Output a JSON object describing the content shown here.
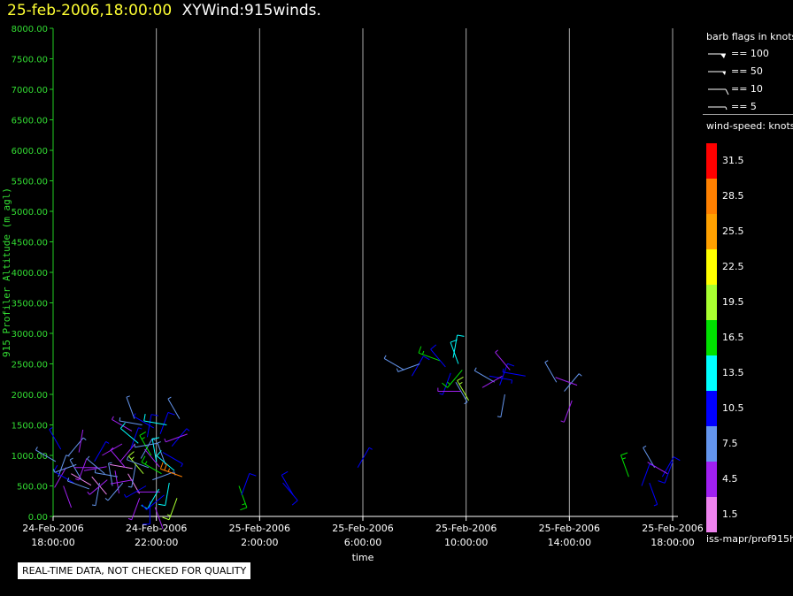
{
  "header": {
    "timestamp": "25-feb-2006,18:00:00",
    "name": "XYWind:915winds."
  },
  "chart_data": {
    "type": "scatter",
    "title": "25-feb-2006,18:00:00  XYWind:915winds.",
    "xlabel": "time",
    "ylabel": "915 Profiler Altitude (m agl)",
    "ylim": [
      0,
      8000
    ],
    "yticks": [
      "0.00",
      "500.00",
      "1000.00",
      "1500.00",
      "2000.00",
      "2500.00",
      "3000.00",
      "3500.00",
      "4000.00",
      "4500.00",
      "5000.00",
      "5500.00",
      "6000.00",
      "6500.00",
      "7000.00",
      "7500.00",
      "8000.00"
    ],
    "xlim_hours": [
      0,
      24
    ],
    "xticks": [
      {
        "hour": 0,
        "date": "24-Feb-2006",
        "time": "18:00:00"
      },
      {
        "hour": 4,
        "date": "24-Feb-2006",
        "time": "22:00:00"
      },
      {
        "hour": 8,
        "date": "25-Feb-2006",
        "time": "2:00:00"
      },
      {
        "hour": 12,
        "date": "25-Feb-2006",
        "time": "6:00:00"
      },
      {
        "hour": 16,
        "date": "25-Feb-2006",
        "time": "10:00:00"
      },
      {
        "hour": 20,
        "date": "25-Feb-2006",
        "time": "14:00:00"
      },
      {
        "hour": 24,
        "date": "25-Feb-2006",
        "time": "18:00:00"
      }
    ],
    "grid": "vertical",
    "wind_barbs": [
      {
        "t": 0.1,
        "alt": 900,
        "spd": 7.5,
        "dir": 300
      },
      {
        "t": 0.2,
        "alt": 650,
        "spd": 6,
        "dir": 20
      },
      {
        "t": 0.3,
        "alt": 1100,
        "spd": 9,
        "dir": 330
      },
      {
        "t": 0.4,
        "alt": 500,
        "spd": 4,
        "dir": 160
      },
      {
        "t": 0.5,
        "alt": 800,
        "spd": 3,
        "dir": 210
      },
      {
        "t": 0.6,
        "alt": 1000,
        "spd": 8,
        "dir": 40
      },
      {
        "t": 0.7,
        "alt": 700,
        "spd": 2,
        "dir": 120
      },
      {
        "t": 0.8,
        "alt": 550,
        "spd": 11,
        "dir": 300
      },
      {
        "t": 0.9,
        "alt": 850,
        "spd": 6,
        "dir": 250
      },
      {
        "t": 1.0,
        "alt": 1050,
        "spd": 4,
        "dir": 10
      },
      {
        "t": 1.1,
        "alt": 600,
        "spd": 8,
        "dir": 330
      },
      {
        "t": 1.2,
        "alt": 750,
        "spd": 3,
        "dir": 80
      },
      {
        "t": 1.3,
        "alt": 950,
        "spd": 5,
        "dir": 200
      },
      {
        "t": 1.4,
        "alt": 450,
        "spd": 7,
        "dir": 290
      },
      {
        "t": 1.5,
        "alt": 650,
        "spd": 2,
        "dir": 140
      },
      {
        "t": 1.6,
        "alt": 900,
        "spd": 9,
        "dir": 30
      },
      {
        "t": 1.7,
        "alt": 800,
        "spd": 4,
        "dir": 270
      },
      {
        "t": 1.8,
        "alt": 550,
        "spd": 6,
        "dir": 190
      },
      {
        "t": 1.9,
        "alt": 1000,
        "spd": 3,
        "dir": 60
      },
      {
        "t": 2.0,
        "alt": 700,
        "spd": 8,
        "dir": 310
      },
      {
        "t": 2.1,
        "alt": 600,
        "spd": 5,
        "dir": 230
      },
      {
        "t": 2.2,
        "alt": 850,
        "spd": 2,
        "dir": 100
      },
      {
        "t": 2.3,
        "alt": 500,
        "spd": 7,
        "dir": 350
      },
      {
        "t": 2.4,
        "alt": 750,
        "spd": 4,
        "dir": 170
      },
      {
        "t": 2.5,
        "alt": 650,
        "spd": 6,
        "dir": 280
      },
      {
        "t": 2.6,
        "alt": 900,
        "spd": 3,
        "dir": 40
      },
      {
        "t": 2.7,
        "alt": 550,
        "spd": 8,
        "dir": 220
      },
      {
        "t": 2.8,
        "alt": 800,
        "spd": 5,
        "dir": 320
      },
      {
        "t": 2.9,
        "alt": 700,
        "spd": 2,
        "dir": 150
      },
      {
        "t": 3.0,
        "alt": 1100,
        "spd": 9,
        "dir": 20
      },
      {
        "t": 3.05,
        "alt": 1400,
        "spd": 5,
        "dir": 300
      },
      {
        "t": 3.1,
        "alt": 600,
        "spd": 4,
        "dir": 260
      },
      {
        "t": 3.15,
        "alt": 1600,
        "spd": 6,
        "dir": 340
      },
      {
        "t": 3.2,
        "alt": 850,
        "spd": 7,
        "dir": 190
      },
      {
        "t": 3.25,
        "alt": 400,
        "spd": 3,
        "dir": 90
      },
      {
        "t": 3.3,
        "alt": 1200,
        "spd": 12,
        "dir": 310
      },
      {
        "t": 3.35,
        "alt": 300,
        "spd": 5,
        "dir": 200
      },
      {
        "t": 3.4,
        "alt": 950,
        "spd": 6,
        "dir": 30
      },
      {
        "t": 3.45,
        "alt": 1500,
        "spd": 8,
        "dir": 280
      },
      {
        "t": 3.5,
        "alt": 700,
        "spd": 18,
        "dir": 320
      },
      {
        "t": 3.55,
        "alt": 1100,
        "spd": 4,
        "dir": 140
      },
      {
        "t": 3.6,
        "alt": 500,
        "spd": 9,
        "dir": 240
      },
      {
        "t": 3.65,
        "alt": 1300,
        "spd": 11,
        "dir": 10
      },
      {
        "t": 3.7,
        "alt": 800,
        "spd": 6,
        "dir": 290
      },
      {
        "t": 3.75,
        "alt": 250,
        "spd": 10,
        "dir": 180
      },
      {
        "t": 3.8,
        "alt": 1000,
        "spd": 15,
        "dir": 330
      },
      {
        "t": 3.85,
        "alt": 600,
        "spd": 7,
        "dir": 70
      },
      {
        "t": 3.9,
        "alt": 1450,
        "spd": 9,
        "dir": 300
      },
      {
        "t": 3.95,
        "alt": 150,
        "spd": 4,
        "dir": 160
      },
      {
        "t": 4.0,
        "alt": 900,
        "spd": 12,
        "dir": 350
      },
      {
        "t": 4.05,
        "alt": 1200,
        "spd": 8,
        "dir": 260
      },
      {
        "t": 4.1,
        "alt": 450,
        "spd": 14,
        "dir": 210
      },
      {
        "t": 4.15,
        "alt": 1350,
        "spd": 10,
        "dir": 20
      },
      {
        "t": 4.2,
        "alt": 700,
        "spd": 16,
        "dir": 300
      },
      {
        "t": 4.25,
        "alt": 1050,
        "spd": 9,
        "dir": 120
      },
      {
        "t": 4.3,
        "alt": 350,
        "spd": 11,
        "dir": 230
      },
      {
        "t": 4.35,
        "alt": 850,
        "spd": 7,
        "dir": 340
      },
      {
        "t": 4.4,
        "alt": 1500,
        "spd": 12,
        "dir": 280
      },
      {
        "t": 4.5,
        "alt": 550,
        "spd": 14,
        "dir": 190
      },
      {
        "t": 4.6,
        "alt": 1150,
        "spd": 9,
        "dir": 40
      },
      {
        "t": 4.7,
        "alt": 750,
        "spd": 13,
        "dir": 310
      },
      {
        "t": 4.8,
        "alt": 300,
        "spd": 18,
        "dir": 200
      },
      {
        "t": 4.9,
        "alt": 1600,
        "spd": 8,
        "dir": 330
      },
      {
        "t": 5.0,
        "alt": 650,
        "spd": 27,
        "dir": 290
      },
      {
        "t": 5.2,
        "alt": 1350,
        "spd": 5,
        "dir": 250
      },
      {
        "t": 7.2,
        "alt": 500,
        "spd": 15,
        "dir": 160
      },
      {
        "t": 7.3,
        "alt": 350,
        "spd": 11,
        "dir": 20
      },
      {
        "t": 8.9,
        "alt": 550,
        "spd": 10,
        "dir": 140
      },
      {
        "t": 9.3,
        "alt": 350,
        "spd": 10,
        "dir": 330
      },
      {
        "t": 11.8,
        "alt": 800,
        "spd": 9,
        "dir": 30
      },
      {
        "t": 13.6,
        "alt": 2400,
        "spd": 8,
        "dir": 300
      },
      {
        "t": 13.9,
        "alt": 2300,
        "spd": 10,
        "dir": 30
      },
      {
        "t": 14.2,
        "alt": 2500,
        "spd": 6,
        "dir": 250
      },
      {
        "t": 15.0,
        "alt": 2550,
        "spd": 17,
        "dir": 290
      },
      {
        "t": 15.2,
        "alt": 2450,
        "spd": 11,
        "dir": 320
      },
      {
        "t": 15.4,
        "alt": 2350,
        "spd": 9,
        "dir": 200
      },
      {
        "t": 15.5,
        "alt": 2600,
        "spd": 12,
        "dir": 10
      },
      {
        "t": 15.6,
        "alt": 2200,
        "spd": 7,
        "dir": 150
      },
      {
        "t": 15.7,
        "alt": 2500,
        "spd": 14,
        "dir": 340
      },
      {
        "t": 15.8,
        "alt": 2050,
        "spd": 5,
        "dir": 270
      },
      {
        "t": 15.85,
        "alt": 2400,
        "spd": 15,
        "dir": 220
      },
      {
        "t": 16.1,
        "alt": 1900,
        "spd": 18,
        "dir": 330
      },
      {
        "t": 16.9,
        "alt": 2300,
        "spd": 9,
        "dir": 100
      },
      {
        "t": 17.1,
        "alt": 2200,
        "spd": 6,
        "dir": 300
      },
      {
        "t": 17.3,
        "alt": 2150,
        "spd": 11,
        "dir": 20
      },
      {
        "t": 17.4,
        "alt": 2300,
        "spd": 4,
        "dir": 240
      },
      {
        "t": 17.5,
        "alt": 2000,
        "spd": 8,
        "dir": 190
      },
      {
        "t": 17.7,
        "alt": 2400,
        "spd": 5,
        "dir": 320
      },
      {
        "t": 18.3,
        "alt": 2300,
        "spd": 9,
        "dir": 280
      },
      {
        "t": 19.5,
        "alt": 2200,
        "spd": 6,
        "dir": 330
      },
      {
        "t": 19.8,
        "alt": 2050,
        "spd": 7,
        "dir": 40
      },
      {
        "t": 20.1,
        "alt": 1900,
        "spd": 5,
        "dir": 200
      },
      {
        "t": 20.3,
        "alt": 2150,
        "spd": 4,
        "dir": 290
      },
      {
        "t": 22.3,
        "alt": 650,
        "spd": 17,
        "dir": 340
      },
      {
        "t": 22.8,
        "alt": 500,
        "spd": 10,
        "dir": 20
      },
      {
        "t": 23.1,
        "alt": 550,
        "spd": 9,
        "dir": 160
      },
      {
        "t": 23.3,
        "alt": 800,
        "spd": 7,
        "dir": 330
      },
      {
        "t": 23.6,
        "alt": 650,
        "spd": 10,
        "dir": 30
      },
      {
        "t": 23.8,
        "alt": 700,
        "spd": 3,
        "dir": 300
      },
      {
        "t": 24.0,
        "alt": 900,
        "spd": 11,
        "dir": 200
      }
    ]
  },
  "legend": {
    "barb_title": "barb flags in knots",
    "barb_items": [
      "== 100",
      "== 50",
      "== 10",
      "== 5"
    ],
    "speed_title": "wind-speed: knots",
    "speed_scale": [
      {
        "label": "31.5",
        "color": "#ff0000"
      },
      {
        "label": "28.5",
        "color": "#ff8000"
      },
      {
        "label": "25.5",
        "color": "#ffa000"
      },
      {
        "label": "22.5",
        "color": "#ffff00"
      },
      {
        "label": "19.5",
        "color": "#a8ff30"
      },
      {
        "label": "16.5",
        "color": "#00e000"
      },
      {
        "label": "13.5",
        "color": "#00ffff"
      },
      {
        "label": "10.5",
        "color": "#0000ff"
      },
      {
        "label": "7.5",
        "color": "#6495ed"
      },
      {
        "label": "4.5",
        "color": "#a020f0"
      },
      {
        "label": "1.5",
        "color": "#ee82ee"
      }
    ]
  },
  "footer": {
    "source": "iss-mapr/prof915h",
    "warning": "REAL-TIME DATA, NOT CHECKED FOR QUALITY"
  }
}
